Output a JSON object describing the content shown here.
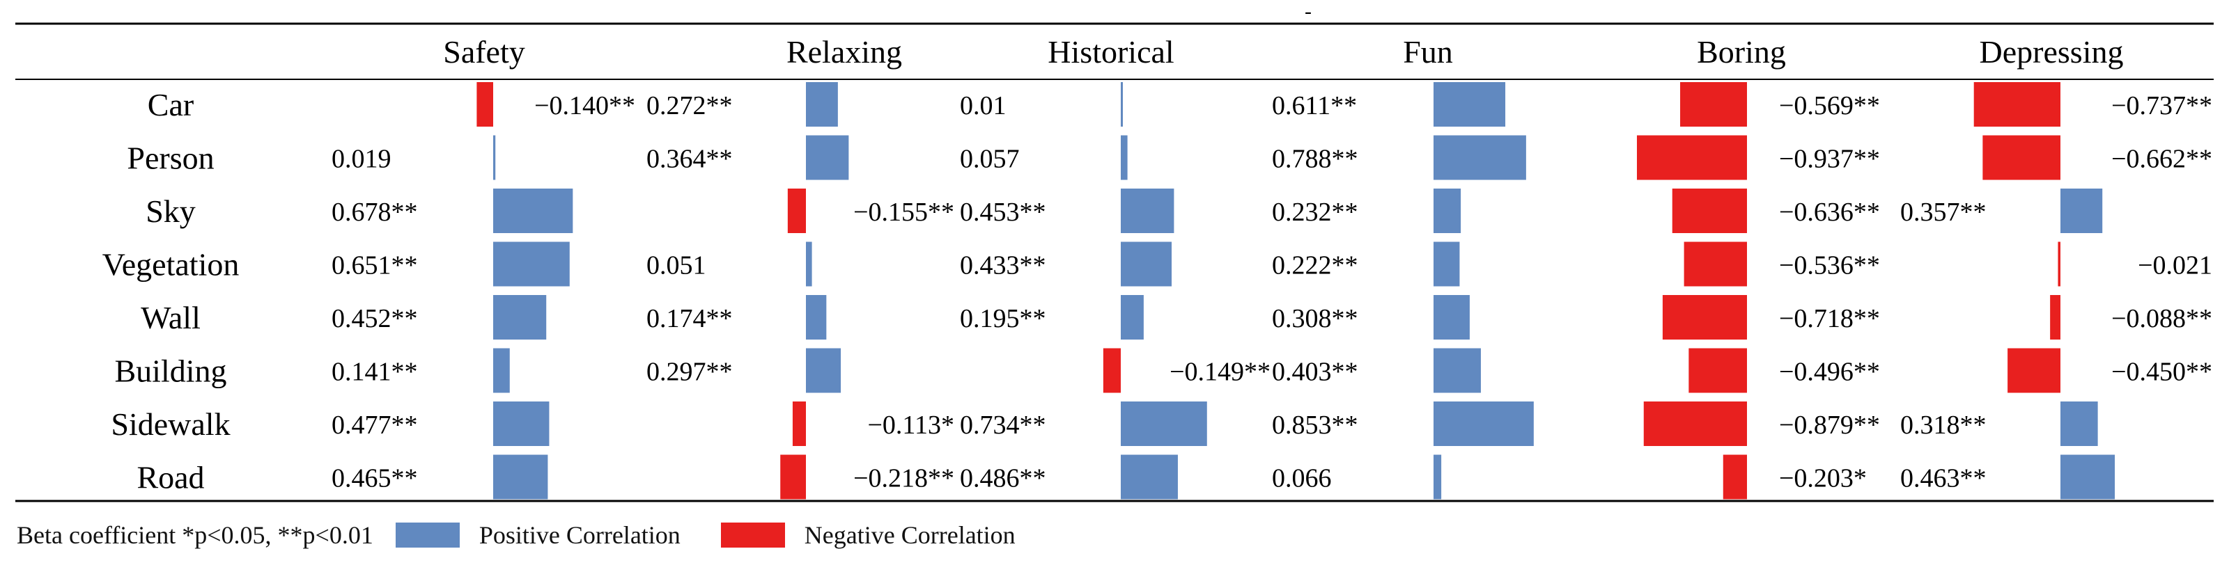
{
  "chart_data": {
    "type": "bar",
    "top_mark": "-",
    "columns": [
      "Safety",
      "Relaxing",
      "Historical",
      "Fun",
      "Boring",
      "Depressing"
    ],
    "rows": [
      "Car",
      "Person",
      "Sky",
      "Vegetation",
      "Wall",
      "Building",
      "Sidewalk",
      "Road"
    ],
    "values": {
      "Safety": [
        -0.14,
        0.019,
        0.678,
        0.651,
        0.452,
        0.141,
        0.477,
        0.465
      ],
      "Relaxing": [
        0.272,
        0.364,
        -0.155,
        0.051,
        0.174,
        0.297,
        -0.113,
        -0.218
      ],
      "Historical": [
        0.01,
        0.057,
        0.453,
        0.433,
        0.195,
        -0.149,
        0.734,
        0.486
      ],
      "Fun": [
        0.611,
        0.788,
        0.232,
        0.222,
        0.308,
        0.403,
        0.853,
        0.066
      ],
      "Boring": [
        -0.569,
        -0.937,
        -0.636,
        -0.536,
        -0.718,
        -0.496,
        -0.879,
        -0.203
      ],
      "Depressing": [
        -0.737,
        -0.662,
        0.357,
        -0.021,
        -0.088,
        -0.45,
        0.318,
        0.463
      ]
    },
    "labels": {
      "Safety": [
        "−0.140**",
        "0.019",
        "0.678**",
        "0.651**",
        "0.452**",
        "0.141**",
        "0.477**",
        "0.465**"
      ],
      "Relaxing": [
        "0.272**",
        "0.364**",
        "−0.155**",
        "0.051",
        "0.174**",
        "0.297**",
        "−0.113*",
        "−0.218**"
      ],
      "Historical": [
        "0.01",
        "0.057",
        "0.453**",
        "0.433**",
        "0.195**",
        "−0.149**",
        "0.734**",
        "0.486**"
      ],
      "Fun": [
        "0.611**",
        "0.788**",
        "0.232**",
        "0.222**",
        "0.308**",
        "0.403**",
        "0.853**",
        "0.066"
      ],
      "Boring": [
        "−0.569**",
        "−0.937**",
        "−0.636**",
        "−0.536**",
        "−0.718**",
        "−0.496**",
        "−0.879**",
        "−0.203*"
      ],
      "Depressing": [
        "−0.737**",
        "−0.662**",
        "0.357**",
        "−0.021",
        "−0.088**",
        "−0.450**",
        "0.318**",
        "0.463**"
      ]
    },
    "legend": {
      "note": "Beta coefficient *p<0.05, **p<0.01",
      "positive": "Positive Correlation",
      "negative": "Negative Correlation"
    },
    "colors": {
      "positive": "#6189C0",
      "negative": "#E8201F"
    }
  }
}
